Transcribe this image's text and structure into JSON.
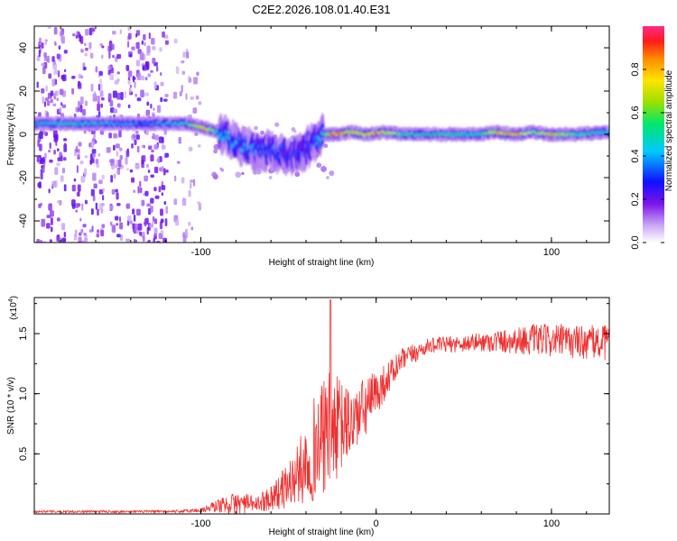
{
  "title": "C2E2.2026.108.01.40.E31",
  "chart_data": [
    {
      "type": "heatmap",
      "xlabel": "Height of straight line (km)",
      "ylabel": "Frequency (Hz)",
      "xlim": [
        -195,
        133
      ],
      "ylim": [
        -50,
        50
      ],
      "xticks": [
        -100,
        0,
        100
      ],
      "xtick_labels": [
        "-100",
        "",
        "100"
      ],
      "yticks": [
        -40,
        -20,
        0,
        20,
        40
      ],
      "ytick_labels": [
        "-40",
        "-20",
        "0",
        "20",
        "40"
      ],
      "colorbar": {
        "label": "Normalized spectral amplitude",
        "range": [
          0,
          1
        ],
        "ticks": [
          0,
          0.2,
          0.4,
          0.6,
          0.8
        ],
        "tick_labels": [
          "0.0",
          "0.2",
          "0.4",
          "0.6",
          "0.8"
        ]
      },
      "ridge": [
        {
          "x": -190,
          "f": 5,
          "a": 0.45
        },
        {
          "x": -175,
          "f": 5,
          "a": 0.5
        },
        {
          "x": -160,
          "f": 5,
          "a": 0.45
        },
        {
          "x": -145,
          "f": 5,
          "a": 0.4
        },
        {
          "x": -130,
          "f": 5,
          "a": 0.35
        },
        {
          "x": -118,
          "f": 5,
          "a": 0.45
        },
        {
          "x": -108,
          "f": 5,
          "a": 0.5
        },
        {
          "x": -98,
          "f": 3,
          "a": 0.85
        },
        {
          "x": -90,
          "f": 1,
          "a": 0.5
        },
        {
          "x": -82,
          "f": -3,
          "a": 0.4
        },
        {
          "x": -74,
          "f": -6,
          "a": 0.4
        },
        {
          "x": -66,
          "f": -7,
          "a": 0.35
        },
        {
          "x": -58,
          "f": -8,
          "a": 0.35
        },
        {
          "x": -50,
          "f": -9,
          "a": 0.3
        },
        {
          "x": -42,
          "f": -8,
          "a": 0.3
        },
        {
          "x": -35,
          "f": -3,
          "a": 0.35
        },
        {
          "x": -30,
          "f": 0,
          "a": 0.5
        },
        {
          "x": -24,
          "f": 0,
          "a": 0.95
        },
        {
          "x": -14,
          "f": 1,
          "a": 0.75
        },
        {
          "x": -6,
          "f": 0,
          "a": 0.85
        },
        {
          "x": 4,
          "f": 1,
          "a": 0.8
        },
        {
          "x": 15,
          "f": 0,
          "a": 0.55
        },
        {
          "x": 30,
          "f": 0,
          "a": 0.5
        },
        {
          "x": 45,
          "f": 0,
          "a": 0.55
        },
        {
          "x": 60,
          "f": 0,
          "a": 0.5
        },
        {
          "x": 67,
          "f": 1,
          "a": 0.75
        },
        {
          "x": 80,
          "f": 0,
          "a": 0.85
        },
        {
          "x": 90,
          "f": 1,
          "a": 0.6
        },
        {
          "x": 100,
          "f": 0,
          "a": 0.8
        },
        {
          "x": 115,
          "f": 0,
          "a": 0.55
        },
        {
          "x": 130,
          "f": 1,
          "a": 0.5
        }
      ],
      "noise_region": {
        "x_from": -195,
        "x_to": -100,
        "f_from": -50,
        "f_to": 50,
        "amplitude": 0.1
      }
    },
    {
      "type": "line",
      "xlabel": "Height of straight line (km)",
      "ylabel": "SNR (10 * v/v)",
      "yscale_label": "(x10",
      "yscale_exp": "4",
      "xlim": [
        -195,
        133
      ],
      "ylim": [
        0,
        1.8
      ],
      "xticks": [
        -100,
        0,
        100
      ],
      "xtick_labels": [
        "-100",
        "0",
        "100"
      ],
      "yticks": [
        0.5,
        1.0,
        1.5
      ],
      "ytick_labels": [
        "0.5",
        "1.0",
        "1.5"
      ],
      "color": "#f03030",
      "envelope": [
        {
          "x": -195,
          "y": 0.02,
          "noise": 0.01
        },
        {
          "x": -115,
          "y": 0.02,
          "noise": 0.01
        },
        {
          "x": -100,
          "y": 0.03,
          "noise": 0.02
        },
        {
          "x": -90,
          "y": 0.07,
          "noise": 0.06
        },
        {
          "x": -78,
          "y": 0.09,
          "noise": 0.1
        },
        {
          "x": -68,
          "y": 0.08,
          "noise": 0.06
        },
        {
          "x": -55,
          "y": 0.18,
          "noise": 0.15
        },
        {
          "x": -45,
          "y": 0.32,
          "noise": 0.25
        },
        {
          "x": -35,
          "y": 0.55,
          "noise": 0.45
        },
        {
          "x": -26,
          "y": 0.7,
          "noise": 0.5
        },
        {
          "x": -15,
          "y": 0.75,
          "noise": 0.3
        },
        {
          "x": -5,
          "y": 0.9,
          "noise": 0.25
        },
        {
          "x": 5,
          "y": 1.1,
          "noise": 0.15
        },
        {
          "x": 15,
          "y": 1.28,
          "noise": 0.1
        },
        {
          "x": 30,
          "y": 1.4,
          "noise": 0.06
        },
        {
          "x": 60,
          "y": 1.43,
          "noise": 0.08
        },
        {
          "x": 90,
          "y": 1.45,
          "noise": 0.13
        },
        {
          "x": 133,
          "y": 1.42,
          "noise": 0.15
        }
      ],
      "peak": {
        "x": -26,
        "y": 1.78
      }
    }
  ]
}
